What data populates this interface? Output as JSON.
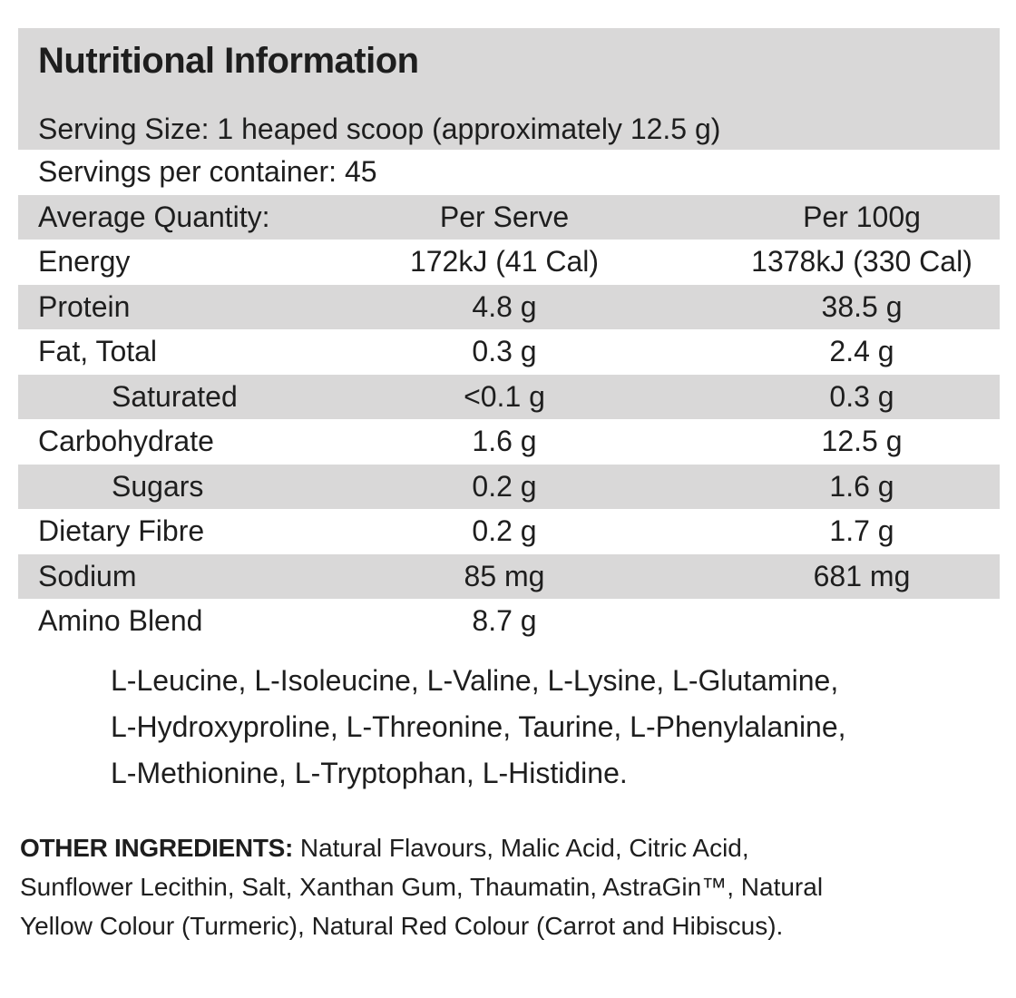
{
  "title": "Nutritional Information",
  "serving_size": "Serving Size: 1 heaped scoop (approximately 12.5 g)",
  "servings_per_container": "Servings per container: 45",
  "header": {
    "label": "Average Quantity:",
    "per_serve": "Per Serve",
    "per_100g": "Per 100g"
  },
  "rows": [
    {
      "name": "Energy",
      "per_serve": "172kJ (41 Cal)",
      "per_100g": "1378kJ (330 Cal)"
    },
    {
      "name": "Protein",
      "per_serve": "4.8 g",
      "per_100g": "38.5 g"
    },
    {
      "name": "Fat, Total",
      "per_serve": "0.3 g",
      "per_100g": "2.4 g"
    },
    {
      "name": "Saturated",
      "per_serve": "<0.1 g",
      "per_100g": "0.3 g"
    },
    {
      "name": "Carbohydrate",
      "per_serve": "1.6 g",
      "per_100g": "12.5 g"
    },
    {
      "name": "Sugars",
      "per_serve": "0.2 g",
      "per_100g": "1.6 g"
    },
    {
      "name": "Dietary Fibre",
      "per_serve": "0.2 g",
      "per_100g": "1.7 g"
    },
    {
      "name": "Sodium",
      "per_serve": "85 mg",
      "per_100g": "681 mg"
    },
    {
      "name": "Amino Blend",
      "per_serve": "8.7 g",
      "per_100g": ""
    }
  ],
  "amino_blend_lines": [
    "L-Leucine, L-Isoleucine, L-Valine, L-Lysine, L-Glutamine,",
    "L-Hydroxyproline, L-Threonine, Taurine, L-Phenylalanine,",
    "L-Methionine, L-Tryptophan, L-Histidine."
  ],
  "other_ingredients": {
    "label": "OTHER INGREDIENTS:",
    "lines": [
      "Natural Flavours, Malic Acid, Citric Acid,",
      "Sunflower Lecithin, Salt, Xanthan Gum, Thaumatin, AstraGin™, Natural",
      "Yellow Colour (Turmeric), Natural Red Colour (Carrot and Hibiscus)."
    ]
  },
  "colors": {
    "shade": "#d9d8d8",
    "text": "#1e1e1e"
  }
}
